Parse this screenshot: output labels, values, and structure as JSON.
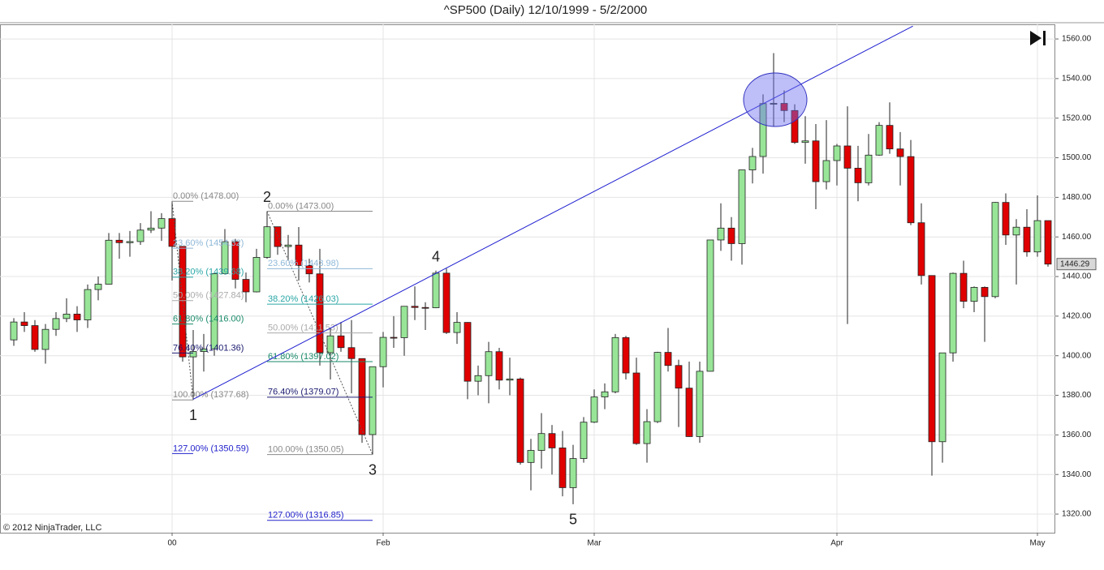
{
  "chart_data": {
    "type": "candlestick",
    "title": "^SP500 (Daily)  12/10/1999 - 5/2/2000",
    "copyright": "© 2012 NinjaTrader, LLC",
    "categories": [
      null,
      null,
      null,
      null,
      null,
      null,
      null,
      null,
      null,
      null,
      null,
      null,
      null,
      null,
      null,
      "00",
      null,
      null,
      null,
      null,
      null,
      null,
      null,
      null,
      null,
      null,
      null,
      null,
      null,
      null,
      null,
      null,
      null,
      null,
      null,
      "Feb",
      null,
      null,
      null,
      null,
      null,
      null,
      null,
      null,
      null,
      null,
      null,
      null,
      null,
      null,
      null,
      null,
      null,
      null,
      null,
      "Mar",
      null,
      null,
      null,
      null,
      null,
      null,
      null,
      null,
      null,
      null,
      null,
      null,
      null,
      null,
      null,
      null,
      null,
      null,
      null,
      null,
      null,
      null,
      "Apr",
      null,
      null,
      null,
      null,
      null,
      null,
      null,
      null,
      null,
      null,
      null,
      null,
      null,
      null,
      null,
      null,
      null,
      null,
      "May",
      null
    ],
    "open": [
      1408,
      1417.04,
      1415.22,
      1403.17,
      1413.32,
      1418.78,
      1421.03,
      1418.09,
      1433.43,
      1436.13,
      1458.34,
      1457.1,
      1457.66,
      1463.46,
      1464.47,
      1469.25,
      1455.22,
      1399.42,
      1402.11,
      1403.45,
      1441.47,
      1457.6,
      1438.56,
      1432.25,
      1449.68,
      1465.15,
      1455.14,
      1455.9,
      1445.57,
      1441.36,
      1401.53,
      1410.03,
      1404.09,
      1398.56,
      1360.16,
      1394.46,
      1409.28,
      1409.12,
      1424.97,
      1424.37,
      1424.24,
      1441.72,
      1411.71,
      1416.83,
      1387.12,
      1389.94,
      1402.05,
      1387.67,
      1388.26,
      1346.09,
      1352.17,
      1360.69,
      1353.43,
      1333.36,
      1348.05,
      1366.42,
      1379.19,
      1381.76,
      1409.17,
      1391.28,
      1355.62,
      1366.7,
      1401.69,
      1395.07,
      1383.62,
      1359.15,
      1392.14,
      1458.47,
      1464.47,
      1456.63,
      1493.87,
      1500.64,
      1527.35,
      1527.46,
      1523.86,
      1507.73,
      1508.52,
      1487.92,
      1498.58,
      1505.97,
      1494.73,
      1487.37,
      1501.34,
      1516.35,
      1504.46,
      1500.59,
      1467.17,
      1440.51,
      1356.56,
      1401.44,
      1441.61,
      1427.47,
      1434.54,
      1429.86,
      1477.44,
      1460.99,
      1464.92,
      1452.43,
      1468.25
    ],
    "high": [
      1419,
      1422,
      1418,
      1416,
      1422,
      1429,
      1425,
      1436,
      1440,
      1462,
      1462,
      1463,
      1467,
      1473,
      1472,
      1478,
      1455.22,
      1413,
      1411,
      1441.47,
      1464,
      1459,
      1442,
      1454,
      1473,
      1465,
      1461,
      1465,
      1449,
      1454,
      1414,
      1417,
      1418,
      1398.56,
      1394.46,
      1412,
      1420,
      1425,
      1435,
      1427,
      1443,
      1444,
      1422,
      1417,
      1395,
      1407,
      1404,
      1399,
      1389,
      1358,
      1371,
      1365,
      1362,
      1355,
      1369,
      1383,
      1386,
      1411,
      1410,
      1399,
      1373,
      1402,
      1414,
      1398,
      1397,
      1397,
      1458.47,
      1477,
      1470,
      1493.92,
      1505,
      1532,
      1552.87,
      1534,
      1527,
      1521,
      1517,
      1519,
      1507,
      1526,
      1506,
      1512,
      1518,
      1528,
      1513,
      1509,
      1477,
      1440.51,
      1401.53,
      1442,
      1448,
      1435,
      1435,
      1477.67,
      1482,
      1469,
      1474,
      1481,
      1468.25
    ],
    "low": [
      1405,
      1412,
      1402,
      1396,
      1410,
      1417,
      1412,
      1414,
      1428,
      1436,
      1449,
      1450,
      1456,
      1462,
      1458,
      1438,
      1397,
      1377.68,
      1392,
      1400,
      1441,
      1434,
      1427,
      1432,
      1449,
      1451,
      1448,
      1438,
      1437,
      1395,
      1388,
      1402,
      1381,
      1356,
      1350.05,
      1384,
      1404,
      1400,
      1418,
      1413,
      1424,
      1411,
      1406,
      1378,
      1380,
      1376,
      1383,
      1380,
      1345,
      1332,
      1343,
      1340,
      1329,
      1325,
      1346,
      1366,
      1373,
      1381,
      1388,
      1355,
      1346,
      1366,
      1392,
      1364,
      1359,
      1356,
      1392,
      1453,
      1448,
      1446,
      1487,
      1492,
      1516,
      1518,
      1507,
      1497,
      1474,
      1484,
      1486,
      1416,
      1478,
      1486,
      1501,
      1502,
      1486,
      1466,
      1436,
      1339.4,
      1346,
      1397,
      1424,
      1422,
      1407,
      1429,
      1456,
      1436,
      1450,
      1450,
      1445
    ],
    "close": [
      1417.04,
      1415.22,
      1403.17,
      1413.32,
      1418.78,
      1421.03,
      1418.09,
      1433.43,
      1436.13,
      1458.34,
      1457.1,
      1457.66,
      1463.46,
      1464.47,
      1469.25,
      1455.22,
      1399.42,
      1402.11,
      1403.45,
      1441.47,
      1457.6,
      1438.56,
      1432.25,
      1449.68,
      1465.15,
      1455.14,
      1455.9,
      1445.57,
      1441.36,
      1401.53,
      1410.03,
      1404.09,
      1398.56,
      1360.16,
      1394.46,
      1409.28,
      1409.12,
      1424.97,
      1424.37,
      1424.24,
      1441.72,
      1411.71,
      1416.83,
      1387.12,
      1389.94,
      1402.05,
      1387.67,
      1388.26,
      1346.09,
      1352.17,
      1360.69,
      1353.43,
      1333.36,
      1348.05,
      1366.42,
      1379.19,
      1381.76,
      1409.17,
      1391.28,
      1355.62,
      1366.7,
      1401.69,
      1395.07,
      1383.62,
      1359.15,
      1392.14,
      1458.47,
      1464.47,
      1456.63,
      1493.87,
      1500.64,
      1527.35,
      1527.46,
      1523.86,
      1507.73,
      1508.52,
      1487.92,
      1498.58,
      1505.97,
      1494.73,
      1487.37,
      1501.34,
      1516.35,
      1504.46,
      1500.59,
      1467.17,
      1440.51,
      1356.56,
      1401.44,
      1441.61,
      1427.47,
      1434.54,
      1429.86,
      1477.44,
      1460.99,
      1464.92,
      1452.43,
      1468.25,
      1446.29
    ],
    "up_color": "#98e598",
    "down_color": "#e00000",
    "ylim": [
      1310.6,
      1567.4
    ],
    "yticks": [
      {
        "value": 1320,
        "label": "1320.00"
      },
      {
        "value": 1340,
        "label": "1340.00"
      },
      {
        "value": 1360,
        "label": "1360.00"
      },
      {
        "value": 1380,
        "label": "1380.00"
      },
      {
        "value": 1400,
        "label": "1400.00"
      },
      {
        "value": 1420,
        "label": "1420.00"
      },
      {
        "value": 1440,
        "label": "1440.00"
      },
      {
        "value": 1460,
        "label": "1460.00"
      },
      {
        "value": 1480,
        "label": "1480.00"
      },
      {
        "value": 1500,
        "label": "1500.00"
      },
      {
        "value": 1520,
        "label": "1520.00"
      },
      {
        "value": 1540,
        "label": "1540.00"
      },
      {
        "value": 1560,
        "label": "1560.00"
      }
    ],
    "grid": true,
    "trend_line": {
      "x": [
        17,
        85.2
      ],
      "y": [
        1378,
        1566.5
      ],
      "color": "#1f1fd0"
    },
    "fibonacci": [
      {
        "x": [
          15,
          17
        ],
        "levels": [
          {
            "label": "0.00% (1478.00)",
            "value": 1478.0,
            "color": "#888888"
          },
          {
            "label": "23.60% (1454.32)",
            "value": 1454.32,
            "color": "#8fb8d8"
          },
          {
            "label": "38.20% (1439.68)",
            "value": 1439.68,
            "color": "#2aa6a6"
          },
          {
            "label": "50.00% (1427.84)",
            "value": 1427.84,
            "color": "#aaaaaa"
          },
          {
            "label": "61.80% (1416.00)",
            "value": 1416.0,
            "color": "#1a8a6a"
          },
          {
            "label": "76.40% (1401.36)",
            "value": 1401.36,
            "color": "#1a1a70"
          },
          {
            "label": "100.00% (1377.68)",
            "value": 1377.68,
            "color": "#888888"
          },
          {
            "label": "127.00% (1350.59)",
            "value": 1350.59,
            "color": "#2222cc"
          }
        ]
      },
      {
        "x": [
          24,
          34
        ],
        "levels": [
          {
            "label": "0.00% (1473.00)",
            "value": 1473.0,
            "color": "#888888"
          },
          {
            "label": "23.60% (1443.98)",
            "value": 1443.98,
            "color": "#8fb8d8"
          },
          {
            "label": "38.20% (1426.03)",
            "value": 1426.03,
            "color": "#2aa6a6"
          },
          {
            "label": "50.00% (1411.53)",
            "value": 1411.53,
            "color": "#aaaaaa"
          },
          {
            "label": "61.80% (1397.02)",
            "value": 1397.02,
            "color": "#1a8a6a"
          },
          {
            "label": "76.40% (1379.07)",
            "value": 1379.07,
            "color": "#1a1a70"
          },
          {
            "label": "100.00% (1350.05)",
            "value": 1350.05,
            "color": "#888888"
          },
          {
            "label": "127.00% (1316.85)",
            "value": 1316.85,
            "color": "#2222cc"
          }
        ]
      }
    ],
    "waves": [
      {
        "label": "1",
        "at": 17
      },
      {
        "label": "2",
        "at": 24
      },
      {
        "label": "3",
        "at": 34
      },
      {
        "label": "4",
        "at": 40
      },
      {
        "label": "5",
        "at": 53
      }
    ]
  }
}
